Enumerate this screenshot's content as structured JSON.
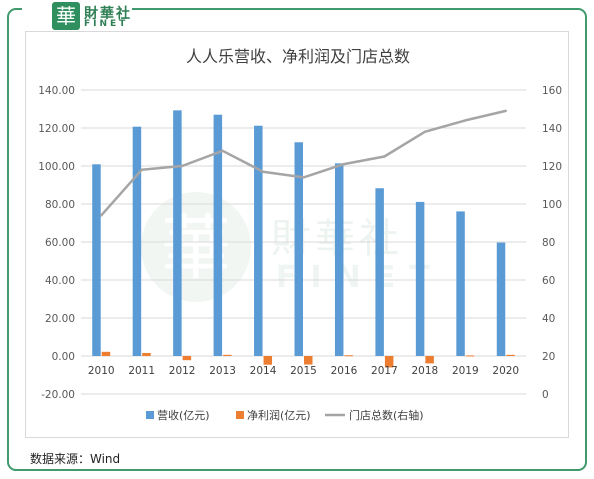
{
  "logo": {
    "seal_char": "華",
    "name_cn": "財華社",
    "name_en": "FINET"
  },
  "watermark": {
    "cn": "財華社",
    "en": "FINET",
    "seal_char": "華"
  },
  "source_text": "数据来源：Wind",
  "colors": {
    "revenue": "#5b9bd5",
    "profit": "#ed7d31",
    "stores": "#a5a5a5",
    "frame": "#3f9a6d"
  },
  "chart_data": {
    "type": "bar",
    "title": "人人乐营收、净利润及门店总数",
    "categories": [
      "2010",
      "2011",
      "2012",
      "2013",
      "2014",
      "2015",
      "2016",
      "2017",
      "2018",
      "2019",
      "2020"
    ],
    "series": [
      {
        "name": "营收(亿元)",
        "type": "bar",
        "axis": "left",
        "values": [
          100.9,
          120.7,
          129.3,
          127.0,
          121.2,
          112.5,
          101.4,
          88.3,
          81.1,
          76.1,
          59.7
        ]
      },
      {
        "name": "净利润(亿元)",
        "type": "bar",
        "axis": "left",
        "values": [
          2.2,
          1.6,
          -2.2,
          0.6,
          -4.6,
          -4.5,
          0.4,
          -6.0,
          -3.9,
          0.3,
          0.6
        ]
      },
      {
        "name": "门店总数(右轴)",
        "type": "line",
        "axis": "right",
        "values": [
          94,
          118,
          120,
          128,
          117,
          114,
          121,
          125,
          138,
          144,
          149
        ]
      }
    ],
    "y_left": {
      "min": -20,
      "max": 140,
      "step": 20,
      "ticks": [
        "-20.00",
        "0.00",
        "20.00",
        "40.00",
        "60.00",
        "80.00",
        "100.00",
        "120.00",
        "140.00"
      ]
    },
    "y_right": {
      "min": 0,
      "max": 160,
      "step": 20,
      "ticks": [
        "0",
        "20",
        "40",
        "60",
        "80",
        "100",
        "120",
        "140",
        "160"
      ]
    },
    "grid": true,
    "legend_position": "bottom"
  }
}
